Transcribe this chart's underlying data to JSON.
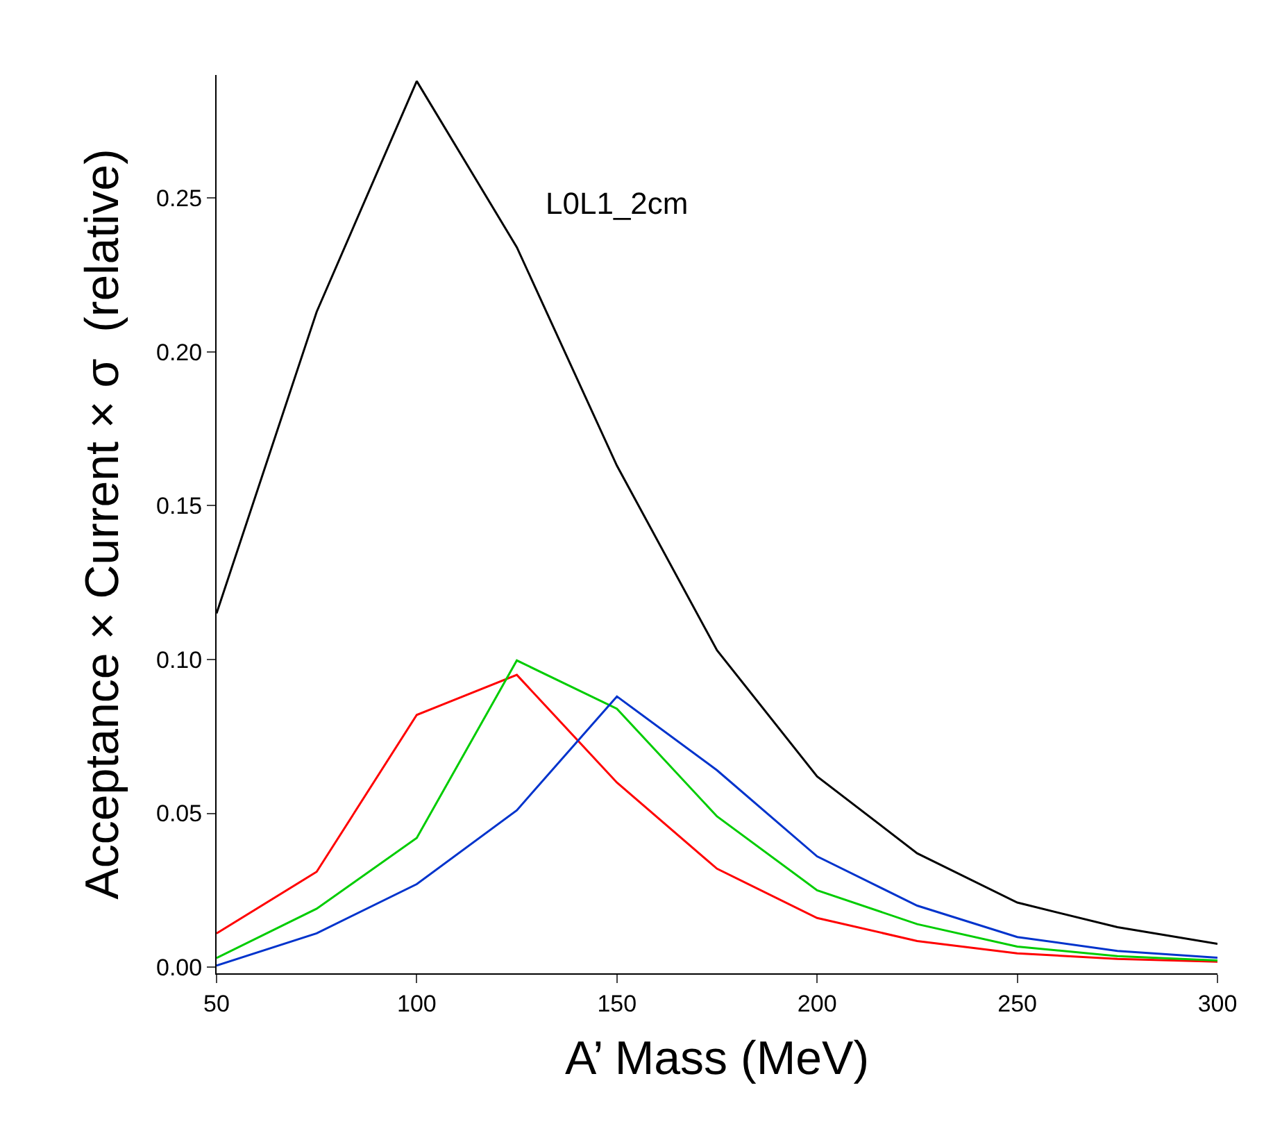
{
  "chart_data": {
    "type": "line",
    "xlabel": "A’ Mass (MeV)",
    "ylabel": "Acceptance × Current × σ  (relative)",
    "annotations": [
      "L0L1_2cm"
    ],
    "x": [
      50,
      75,
      100,
      125,
      150,
      175,
      200,
      225,
      250,
      275,
      300
    ],
    "series": [
      {
        "color": "#000000",
        "values": [
          0.115,
          0.213,
          0.288,
          0.234,
          0.163,
          0.103,
          0.062,
          0.037,
          0.021,
          0.013,
          0.0076
        ]
      },
      {
        "color": "#ff0000",
        "values": [
          0.011,
          0.031,
          0.082,
          0.095,
          0.06,
          0.032,
          0.016,
          0.0085,
          0.0045,
          0.0027,
          0.0018
        ]
      },
      {
        "color": "#00cc00",
        "values": [
          0.003,
          0.019,
          0.042,
          0.0997,
          0.084,
          0.049,
          0.025,
          0.014,
          0.0067,
          0.0036,
          0.0022
        ]
      },
      {
        "color": "#0033cc",
        "values": [
          0.0005,
          0.011,
          0.027,
          0.051,
          0.088,
          0.064,
          0.036,
          0.02,
          0.0098,
          0.0053,
          0.0031
        ]
      }
    ],
    "xlim": [
      50,
      300
    ],
    "xticks": [
      50,
      100,
      150,
      200,
      250,
      300
    ],
    "ylim": [
      -0.002,
      0.29
    ],
    "yticks": [
      {
        "value": 0,
        "label": "0.00"
      },
      {
        "value": 0.05,
        "label": "0.05"
      },
      {
        "value": 0.1,
        "label": "0.10"
      },
      {
        "value": 0.15,
        "label": "0.15"
      },
      {
        "value": 0.2,
        "label": "0.20"
      },
      {
        "value": 0.25,
        "label": "0.25"
      }
    ],
    "grid": false,
    "marker": "none",
    "line_style": "solid"
  }
}
